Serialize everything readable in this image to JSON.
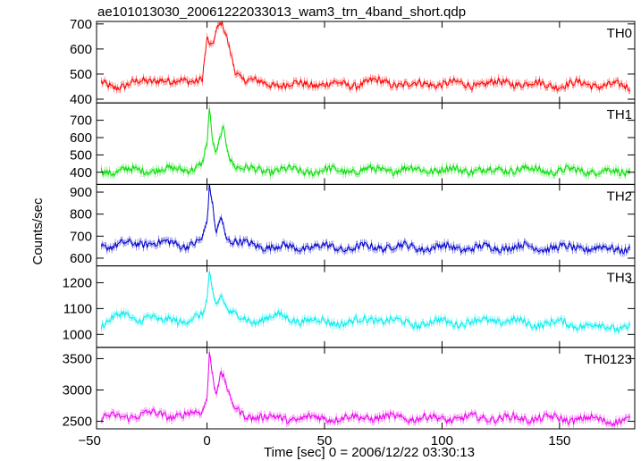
{
  "chart_data": {
    "type": "line",
    "title": "ae101013030_20061222033013_wam3_trn_4band_short.qdp",
    "xlabel": "Time [sec] 0 = 2006/12/22 03:30:13",
    "ylabel": "Counts/sec",
    "xlim": [
      -47,
      182
    ],
    "x_ticks": [
      -50,
      0,
      50,
      100,
      150
    ],
    "x_ticklabels": [
      "−50",
      "0",
      "50",
      "100",
      "150"
    ],
    "grid": false,
    "panels": [
      {
        "name": "TH0",
        "color": "#ff0000",
        "ylim": [
          385,
          710
        ],
        "y_ticks": [
          400,
          500,
          600,
          700
        ],
        "series": {
          "x": [
            -45,
            -40,
            -35,
            -30,
            -25,
            -20,
            -15,
            -10,
            -5,
            -2,
            0,
            2,
            4,
            6,
            8,
            10,
            12,
            15,
            20,
            25,
            30,
            40,
            50,
            60,
            70,
            80,
            90,
            100,
            110,
            120,
            130,
            140,
            150,
            160,
            170,
            180
          ],
          "y": [
            462,
            452,
            456,
            464,
            472,
            484,
            465,
            470,
            478,
            488,
            640,
            600,
            665,
            700,
            660,
            590,
            520,
            482,
            468,
            462,
            460,
            458,
            462,
            456,
            470,
            462,
            458,
            464,
            458,
            462,
            466,
            460,
            456,
            462,
            455,
            450
          ]
        }
      },
      {
        "name": "TH1",
        "color": "#00dd00",
        "ylim": [
          330,
          800
        ],
        "y_ticks": [
          400,
          500,
          600,
          700
        ],
        "series": {
          "x": [
            -45,
            -40,
            -35,
            -30,
            -25,
            -20,
            -15,
            -10,
            -5,
            -2,
            0,
            1,
            2,
            3,
            4,
            5,
            6,
            7,
            8,
            10,
            12,
            15,
            20,
            25,
            30,
            40,
            50,
            60,
            70,
            80,
            90,
            100,
            110,
            120,
            130,
            140,
            150,
            160,
            170,
            180
          ],
          "y": [
            410,
            405,
            412,
            408,
            415,
            420,
            410,
            418,
            430,
            450,
            560,
            760,
            610,
            530,
            500,
            560,
            630,
            650,
            590,
            480,
            440,
            420,
            412,
            408,
            415,
            405,
            410,
            408,
            412,
            415,
            418,
            412,
            415,
            410,
            420,
            412,
            408,
            410,
            405,
            400
          ]
        }
      },
      {
        "name": "TH2",
        "color": "#0000cc",
        "ylim": [
          565,
          935
        ],
        "y_ticks": [
          600,
          700,
          800,
          900
        ],
        "series": {
          "x": [
            -45,
            -40,
            -35,
            -30,
            -25,
            -20,
            -15,
            -10,
            -5,
            -2,
            0,
            1,
            2,
            3,
            4,
            5,
            6,
            8,
            10,
            15,
            20,
            25,
            30,
            40,
            50,
            60,
            70,
            80,
            90,
            100,
            110,
            120,
            130,
            140,
            150,
            160,
            170,
            180
          ],
          "y": [
            660,
            655,
            662,
            668,
            672,
            665,
            670,
            660,
            668,
            680,
            760,
            920,
            870,
            780,
            720,
            760,
            800,
            700,
            680,
            665,
            660,
            655,
            650,
            648,
            652,
            645,
            650,
            655,
            648,
            650,
            645,
            648,
            652,
            650,
            645,
            648,
            642,
            645
          ]
        }
      },
      {
        "name": "TH3",
        "color": "#00eeee",
        "ylim": [
          950,
          1265
        ],
        "y_ticks": [
          1000,
          1100,
          1200
        ],
        "series": {
          "x": [
            -45,
            -40,
            -35,
            -30,
            -25,
            -20,
            -15,
            -10,
            -5,
            -2,
            0,
            1,
            2,
            3,
            4,
            6,
            8,
            10,
            15,
            20,
            25,
            30,
            40,
            50,
            60,
            70,
            80,
            90,
            100,
            110,
            120,
            130,
            140,
            150,
            160,
            170,
            180
          ],
          "y": [
            1040,
            1060,
            1080,
            1055,
            1070,
            1045,
            1065,
            1050,
            1060,
            1070,
            1130,
            1250,
            1180,
            1140,
            1120,
            1160,
            1110,
            1080,
            1060,
            1050,
            1065,
            1070,
            1055,
            1050,
            1045,
            1060,
            1050,
            1040,
            1050,
            1045,
            1055,
            1050,
            1040,
            1045,
            1035,
            1030,
            1025
          ]
        }
      },
      {
        "name": "TH0123",
        "color": "#ee00ee",
        "ylim": [
          2380,
          3680
        ],
        "y_ticks": [
          2500,
          3000,
          3500
        ],
        "series": {
          "x": [
            -45,
            -40,
            -35,
            -30,
            -25,
            -20,
            -15,
            -10,
            -5,
            -2,
            0,
            1,
            2,
            3,
            4,
            5,
            6,
            7,
            8,
            10,
            12,
            15,
            20,
            25,
            30,
            40,
            50,
            60,
            70,
            80,
            90,
            100,
            110,
            120,
            130,
            140,
            150,
            160,
            170,
            180
          ],
          "y": [
            2570,
            2560,
            2580,
            2600,
            2620,
            2610,
            2590,
            2600,
            2620,
            2650,
            2900,
            3600,
            3400,
            3100,
            3000,
            3150,
            3250,
            3200,
            3100,
            2800,
            2700,
            2620,
            2580,
            2560,
            2550,
            2540,
            2560,
            2550,
            2570,
            2550,
            2560,
            2540,
            2550,
            2560,
            2545,
            2550,
            2540,
            2535,
            2520,
            2500
          ]
        }
      }
    ]
  }
}
